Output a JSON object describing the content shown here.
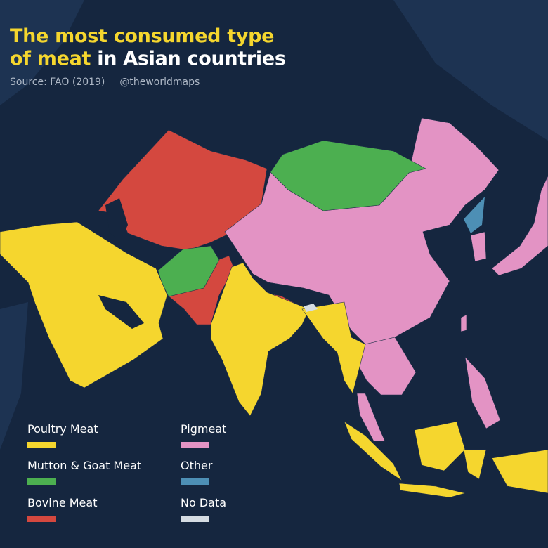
{
  "title": {
    "highlight_1": "The most consumed type",
    "highlight_2": "of meat",
    "rest": " in Asian countries"
  },
  "source": {
    "text": "Source: FAO (2019)",
    "handle": "@theworldmaps"
  },
  "colors": {
    "background": "#15263f",
    "land": "#1d3352",
    "poultry": "#f5d62e",
    "mutton": "#4caf50",
    "bovine": "#d4483f",
    "pig": "#e393c4",
    "other": "#4d8fb5",
    "nodata": "#d5dce3"
  },
  "legend": [
    {
      "label": "Poultry Meat",
      "color": "#f5d62e"
    },
    {
      "label": "Mutton & Goat Meat",
      "color": "#4caf50"
    },
    {
      "label": "Bovine Meat",
      "color": "#d4483f"
    },
    {
      "label": "Pigmeat",
      "color": "#e393c4"
    },
    {
      "label": "Other",
      "color": "#4d8fb5"
    },
    {
      "label": "No Data",
      "color": "#d5dce3"
    }
  ]
}
